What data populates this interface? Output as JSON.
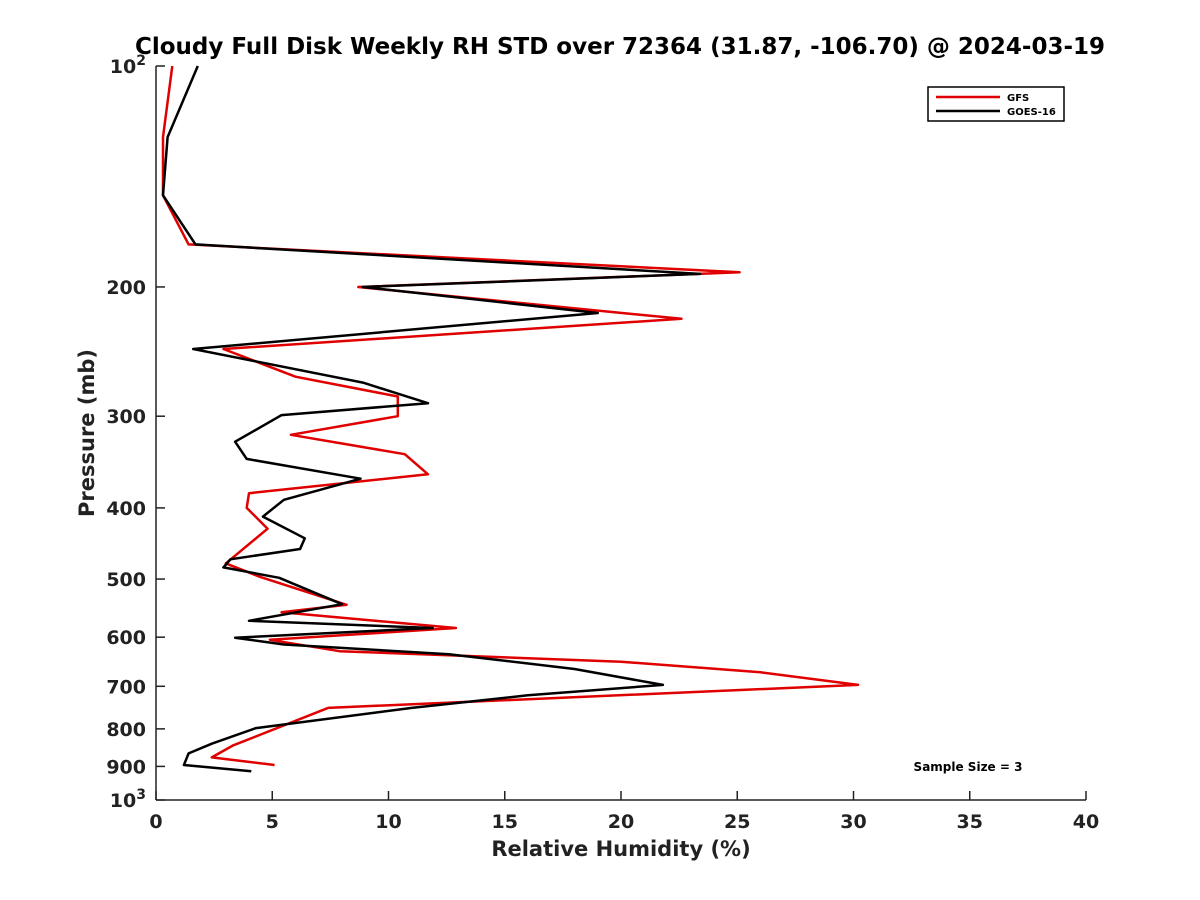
{
  "chart_data": {
    "type": "line",
    "title": "Cloudy Full Disk Weekly RH STD over 72364 (31.87, -106.70) @ 2024-03-19",
    "xlabel": "Relative Humidity (%)",
    "ylabel": "Pressure (mb)",
    "xlim": [
      0,
      40
    ],
    "ylim": [
      100,
      1000
    ],
    "y_scale": "log",
    "y_reversed": true,
    "grid": false,
    "legend_position": "top-right",
    "x_ticks": [
      "0",
      "5",
      "10",
      "15",
      "20",
      "25",
      "30",
      "35",
      "40"
    ],
    "y_ticks": [
      {
        "value": 100,
        "label": "10",
        "sup": "2"
      },
      {
        "value": 200,
        "label": "200",
        "sup": ""
      },
      {
        "value": 300,
        "label": "300",
        "sup": ""
      },
      {
        "value": 400,
        "label": "400",
        "sup": ""
      },
      {
        "value": 500,
        "label": "500",
        "sup": ""
      },
      {
        "value": 600,
        "label": "600",
        "sup": ""
      },
      {
        "value": 700,
        "label": "700",
        "sup": ""
      },
      {
        "value": 800,
        "label": "800",
        "sup": ""
      },
      {
        "value": 900,
        "label": "900",
        "sup": ""
      },
      {
        "value": 1000,
        "label": "10",
        "sup": "3"
      }
    ],
    "annotation": "Sample Size = 3",
    "series": [
      {
        "name": "GFS",
        "color": "#e00000",
        "points": [
          [
            0.7,
            100
          ],
          [
            0.3,
            125
          ],
          [
            0.3,
            150
          ],
          [
            1.4,
            175
          ],
          [
            25.1,
            191
          ],
          [
            8.7,
            200
          ],
          [
            22.6,
            221
          ],
          [
            2.9,
            243
          ],
          [
            6.0,
            265
          ],
          [
            10.4,
            282
          ],
          [
            10.4,
            300
          ],
          [
            5.8,
            318
          ],
          [
            10.7,
            338
          ],
          [
            11.7,
            360
          ],
          [
            4.0,
            382
          ],
          [
            3.9,
            400
          ],
          [
            4.8,
            427
          ],
          [
            3.0,
            476
          ],
          [
            4.5,
            497
          ],
          [
            8.2,
            542
          ],
          [
            5.4,
            555
          ],
          [
            12.9,
            583
          ],
          [
            4.9,
            605
          ],
          [
            7.9,
            627
          ],
          [
            20.0,
            648
          ],
          [
            26.0,
            670
          ],
          [
            30.2,
            697
          ],
          [
            7.4,
            749
          ],
          [
            3.3,
            843
          ],
          [
            2.4,
            875
          ],
          [
            5.1,
            896
          ]
        ]
      },
      {
        "name": "GOES-16",
        "color": "#000000",
        "points": [
          [
            1.8,
            100
          ],
          [
            0.5,
            125
          ],
          [
            0.3,
            150
          ],
          [
            1.7,
            175
          ],
          [
            23.4,
            192
          ],
          [
            8.9,
            200
          ],
          [
            19.0,
            217
          ],
          [
            1.6,
            243
          ],
          [
            8.9,
            270
          ],
          [
            11.7,
            288
          ],
          [
            5.4,
            299
          ],
          [
            3.4,
            325
          ],
          [
            3.9,
            343
          ],
          [
            8.8,
            365
          ],
          [
            5.5,
            390
          ],
          [
            4.6,
            411
          ],
          [
            6.4,
            440
          ],
          [
            6.2,
            455
          ],
          [
            3.2,
            470
          ],
          [
            2.9,
            482
          ],
          [
            5.3,
            498
          ],
          [
            8.0,
            541
          ],
          [
            4.0,
            570
          ],
          [
            11.9,
            583
          ],
          [
            3.4,
            601
          ],
          [
            5.5,
            614
          ],
          [
            12.6,
            633
          ],
          [
            18.0,
            663
          ],
          [
            21.8,
            697
          ],
          [
            16.0,
            720
          ],
          [
            11.0,
            749
          ],
          [
            4.3,
            798
          ],
          [
            2.4,
            838
          ],
          [
            1.4,
            864
          ],
          [
            1.2,
            896
          ],
          [
            4.1,
            914
          ]
        ]
      }
    ]
  }
}
